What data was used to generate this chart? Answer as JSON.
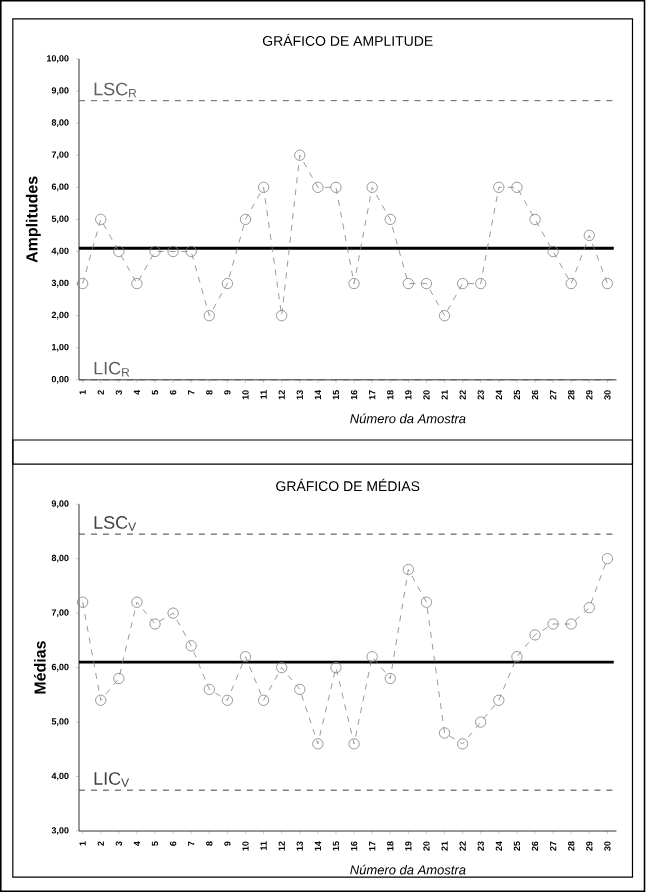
{
  "chart_data": [
    {
      "type": "line",
      "title": "GRÁFICO DE AMPLITUDE",
      "xlabel": "Número da Amostra",
      "ylabel": "Amplitudes",
      "categories": [
        "1",
        "2",
        "3",
        "4",
        "5",
        "6",
        "7",
        "8",
        "9",
        "10",
        "11",
        "12",
        "13",
        "14",
        "15",
        "16",
        "17",
        "18",
        "19",
        "20",
        "21",
        "22",
        "23",
        "24",
        "25",
        "26",
        "27",
        "28",
        "29",
        "30"
      ],
      "series": [
        {
          "color": "#808080",
          "values": [
            3,
            5,
            4,
            3,
            4,
            4,
            4,
            2,
            3,
            5,
            6,
            2,
            7,
            6,
            6,
            3,
            6,
            5,
            3,
            3,
            2,
            3,
            3,
            6,
            6,
            5,
            4,
            3,
            4.5,
            3
          ]
        }
      ],
      "ylim": [
        0,
        10
      ],
      "yticks": [
        {
          "value": 0,
          "label": "0,00"
        },
        {
          "value": 1,
          "label": "1,00"
        },
        {
          "value": 2,
          "label": "2,00"
        },
        {
          "value": 3,
          "label": "3,00"
        },
        {
          "value": 4,
          "label": "4,00"
        },
        {
          "value": 5,
          "label": "5,00"
        },
        {
          "value": 6,
          "label": "6,00"
        },
        {
          "value": 7,
          "label": "7,00"
        },
        {
          "value": 8,
          "label": "8,00"
        },
        {
          "value": 9,
          "label": "9,00"
        },
        {
          "value": 10,
          "label": "10,00"
        }
      ],
      "ref_lines": [
        {
          "axis": "y",
          "value": 8.7,
          "label": "LSC$_{R}$",
          "color": "#606060",
          "line_style": "dashed"
        },
        {
          "axis": "y",
          "value": 4.1,
          "color": "#000000",
          "line_style": "solid"
        },
        {
          "axis": "y",
          "value": 0,
          "label": "LIC$_{R}$",
          "color": "#606060",
          "line_style": "dashed"
        }
      ],
      "marker": "circle",
      "line_style": "dashed",
      "grid": false
    },
    {
      "type": "line",
      "title": "GRÁFICO DE MÉDIAS",
      "xlabel": "Número da Amostra",
      "ylabel": "Médias",
      "categories": [
        "1",
        "2",
        "3",
        "4",
        "5",
        "6",
        "7",
        "8",
        "9",
        "10",
        "11",
        "12",
        "13",
        "14",
        "15",
        "16",
        "17",
        "18",
        "19",
        "20",
        "21",
        "22",
        "23",
        "24",
        "25",
        "26",
        "27",
        "28",
        "29",
        "30"
      ],
      "series": [
        {
          "color": "#808080",
          "values": [
            7.2,
            5.4,
            5.8,
            7.2,
            6.8,
            7.0,
            6.4,
            5.6,
            5.4,
            6.2,
            5.4,
            6.0,
            5.6,
            4.6,
            6.0,
            4.6,
            6.2,
            5.8,
            7.8,
            7.2,
            4.8,
            4.6,
            5.0,
            5.4,
            6.2,
            6.6,
            6.8,
            6.8,
            7.1,
            8.0
          ]
        }
      ],
      "ylim": [
        3,
        9
      ],
      "yticks": [
        {
          "value": 3,
          "label": "3,00"
        },
        {
          "value": 4,
          "label": "4,00"
        },
        {
          "value": 5,
          "label": "5,00"
        },
        {
          "value": 6,
          "label": "6,00"
        },
        {
          "value": 7,
          "label": "7,00"
        },
        {
          "value": 8,
          "label": "8,00"
        },
        {
          "value": 9,
          "label": "9,00"
        }
      ],
      "ref_lines": [
        {
          "axis": "y",
          "value": 8.45,
          "label": "LSC$_{V}$",
          "color": "#404040",
          "line_style": "dashed"
        },
        {
          "axis": "y",
          "value": 6.1,
          "color": "#000000",
          "line_style": "solid"
        },
        {
          "axis": "y",
          "value": 3.75,
          "label": "LIC$_{V}$",
          "color": "#404040",
          "line_style": "dashed"
        }
      ],
      "marker": "circle",
      "line_style": "dashed",
      "grid": false
    }
  ]
}
